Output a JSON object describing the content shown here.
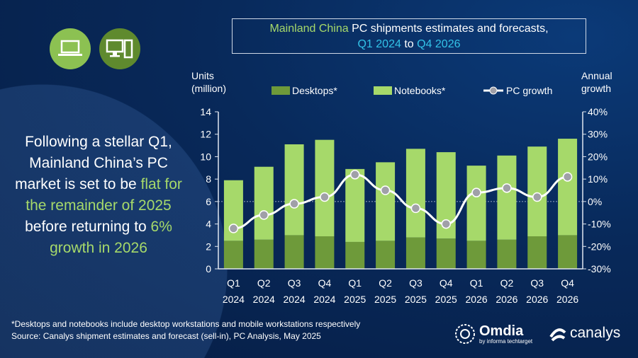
{
  "title": {
    "part1": "Mainland China",
    "part2": " PC shipments estimates and forecasts,",
    "part3": "Q1 2024",
    "part4": " to ",
    "part5": "Q4 2026"
  },
  "lead": {
    "t1": "Following a stellar Q1, Mainland China’s PC market is set to be ",
    "t2": "flat for the remainder of 2025",
    "t3": " before returning to ",
    "t4": "6% growth in 2026"
  },
  "axis_left_title": "Units (million)",
  "axis_right_title": "Annual growth",
  "footnote": "*Desktops and notebooks include desktop workstations and mobile workstations respectively",
  "source": "Source: Canalys shipment estimates and forecast (sell-in), PC Analysis, May 2025",
  "logos": {
    "omdia": "Omdia",
    "omdia_sub": "by informa techtarget",
    "canalys": "canalys"
  },
  "icons": [
    "laptop-icon",
    "desktop-computer-icon"
  ],
  "colors": {
    "desktops": "#6e9a3a",
    "notebooks": "#a6d96a",
    "growth_line": "#ffffff",
    "growth_marker": "#a0a0a8",
    "highlight_green": "#a6d96a",
    "highlight_cyan": "#33c3e8"
  },
  "chart_data": {
    "type": "bar",
    "stacked": true,
    "categories": [
      "Q1 2024",
      "Q2 2024",
      "Q3 2024",
      "Q4 2024",
      "Q1 2025",
      "Q2 2025",
      "Q3 2025",
      "Q4 2025",
      "Q1 2026",
      "Q2 2026",
      "Q3 2026",
      "Q4 2026"
    ],
    "category_lines": [
      [
        "Q1",
        "2024"
      ],
      [
        "Q2",
        "2024"
      ],
      [
        "Q3",
        "2024"
      ],
      [
        "Q4",
        "2024"
      ],
      [
        "Q1",
        "2025"
      ],
      [
        "Q2",
        "2025"
      ],
      [
        "Q3",
        "2025"
      ],
      [
        "Q4",
        "2025"
      ],
      [
        "Q1",
        "2026"
      ],
      [
        "Q2",
        "2026"
      ],
      [
        "Q3",
        "2026"
      ],
      [
        "Q4",
        "2026"
      ]
    ],
    "series": [
      {
        "name": "Desktops*",
        "axis": "left",
        "values": [
          2.5,
          2.6,
          3.0,
          2.9,
          2.4,
          2.5,
          2.8,
          2.7,
          2.5,
          2.6,
          2.9,
          3.0
        ]
      },
      {
        "name": "Notebooks*",
        "axis": "left",
        "values": [
          5.4,
          6.5,
          8.1,
          8.6,
          6.5,
          7.0,
          7.9,
          7.7,
          6.7,
          7.5,
          8.0,
          8.6
        ]
      },
      {
        "name": "PC growth",
        "type": "line",
        "axis": "right",
        "values": [
          -12,
          -6,
          -1,
          2,
          12,
          5,
          -3,
          -10,
          4,
          6,
          2,
          11
        ]
      }
    ],
    "ylim": [
      0,
      14
    ],
    "yticks": [
      0,
      2,
      4,
      6,
      8,
      10,
      12,
      14
    ],
    "y2lim": [
      -30,
      40
    ],
    "y2ticks": [
      "-30%",
      "-20%",
      "-10%",
      "0%",
      "10%",
      "20%",
      "30%",
      "40%"
    ],
    "legend_position": "top",
    "grid": false
  }
}
